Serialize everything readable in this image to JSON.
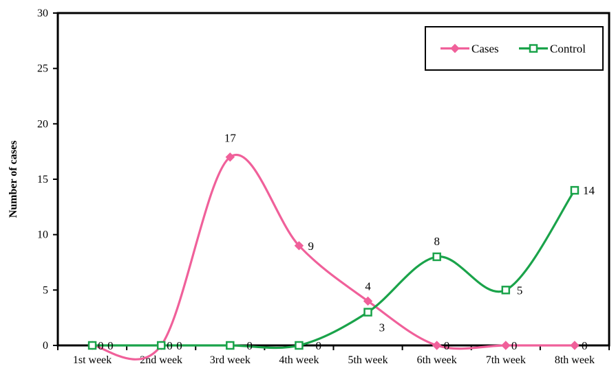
{
  "chart_data": {
    "type": "line",
    "title": "",
    "xlabel": "",
    "ylabel": "Number of cases",
    "categories": [
      "1st week",
      "2nd week",
      "3rd week",
      "4th week",
      "5th week",
      "6th week",
      "7th week",
      "8th week"
    ],
    "ylim": [
      0,
      30
    ],
    "yticks": [
      "0",
      "5",
      "10",
      "15",
      "20",
      "25",
      "30"
    ],
    "grid": false,
    "smooth": true,
    "legend_position": "top-right",
    "series": [
      {
        "name": "Cases",
        "values": [
          0,
          0,
          17,
          9,
          4,
          0,
          0,
          0
        ],
        "labels": [
          "0",
          "0",
          "17",
          "9",
          "4",
          "0",
          "0",
          "0"
        ],
        "color": "#f0609a",
        "marker": "diamond"
      },
      {
        "name": "Control",
        "values": [
          0,
          0,
          0,
          0,
          3,
          8,
          5,
          14
        ],
        "labels": [
          "0",
          "0",
          "0",
          "0",
          "3",
          "8",
          "5",
          "14"
        ],
        "color": "#1aa34a",
        "marker": "square"
      }
    ]
  }
}
